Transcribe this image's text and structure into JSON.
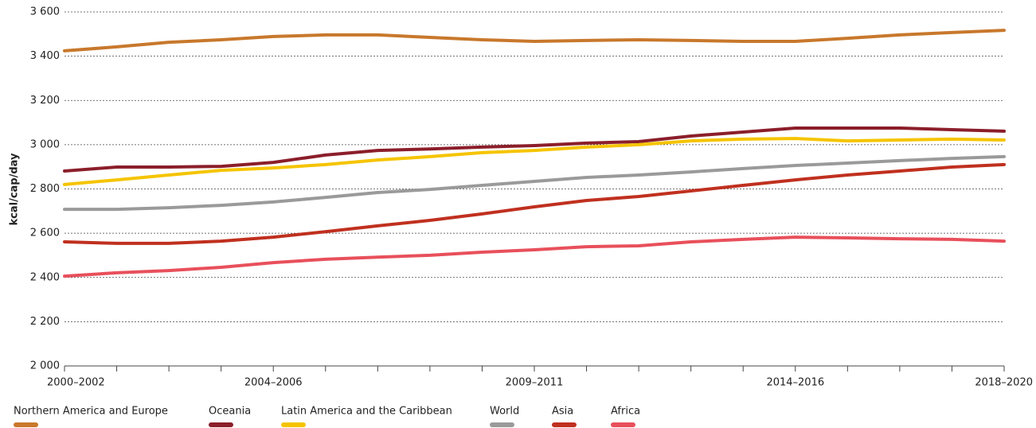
{
  "chart_data": {
    "type": "line",
    "y_label": "kcal/cap/day",
    "categories": [
      "2000–2002",
      null,
      null,
      null,
      "2004–2006",
      null,
      null,
      null,
      null,
      "2009–2011",
      null,
      null,
      null,
      null,
      "2014–2016",
      null,
      null,
      null,
      "2018–2020"
    ],
    "ylim": [
      2000,
      3600
    ],
    "yticks": [
      {
        "value": 2000,
        "label": "2 000"
      },
      {
        "value": 2200,
        "label": "2 200"
      },
      {
        "value": 2400,
        "label": "2 400"
      },
      {
        "value": 2600,
        "label": "2 600"
      },
      {
        "value": 2800,
        "label": "2 800"
      },
      {
        "value": 3000,
        "label": "3 000"
      },
      {
        "value": 3200,
        "label": "3 200"
      },
      {
        "value": 3400,
        "label": "3 400"
      },
      {
        "value": 3600,
        "label": "3 600"
      }
    ],
    "grid": true,
    "legend": "bottom",
    "series": [
      {
        "name": "Northern America and Europe",
        "color": "#c8782c",
        "values": [
          3424,
          3442,
          3463,
          3474,
          3489,
          3496,
          3496,
          3485,
          3474,
          3467,
          3471,
          3474,
          3471,
          3467,
          3467,
          3481,
          3496,
          3507,
          3517
        ]
      },
      {
        "name": "Oceania",
        "color": "#8b1e2a",
        "values": [
          2881,
          2899,
          2899,
          2902,
          2920,
          2953,
          2974,
          2981,
          2989,
          2996,
          3007,
          3014,
          3039,
          3057,
          3075,
          3075,
          3075,
          3068,
          3061
        ]
      },
      {
        "name": "Latin America and the Caribbean",
        "color": "#f5c400",
        "values": [
          2820,
          2841,
          2863,
          2884,
          2895,
          2910,
          2931,
          2946,
          2964,
          2974,
          2989,
          3000,
          3017,
          3025,
          3028,
          3017,
          3021,
          3025,
          3021
        ]
      },
      {
        "name": "World",
        "color": "#9a9a9a",
        "values": [
          2708,
          2708,
          2715,
          2726,
          2741,
          2762,
          2784,
          2798,
          2816,
          2834,
          2852,
          2863,
          2877,
          2892,
          2906,
          2917,
          2928,
          2938,
          2946
        ]
      },
      {
        "name": "Asia",
        "color": "#c0301f",
        "values": [
          2561,
          2554,
          2554,
          2564,
          2582,
          2607,
          2633,
          2658,
          2687,
          2719,
          2748,
          2766,
          2791,
          2816,
          2841,
          2863,
          2881,
          2899,
          2910
        ]
      },
      {
        "name": "Africa",
        "color": "#e8505b",
        "values": [
          2406,
          2421,
          2431,
          2446,
          2467,
          2482,
          2492,
          2500,
          2514,
          2525,
          2539,
          2543,
          2561,
          2572,
          2582,
          2579,
          2575,
          2572,
          2564
        ]
      }
    ]
  }
}
